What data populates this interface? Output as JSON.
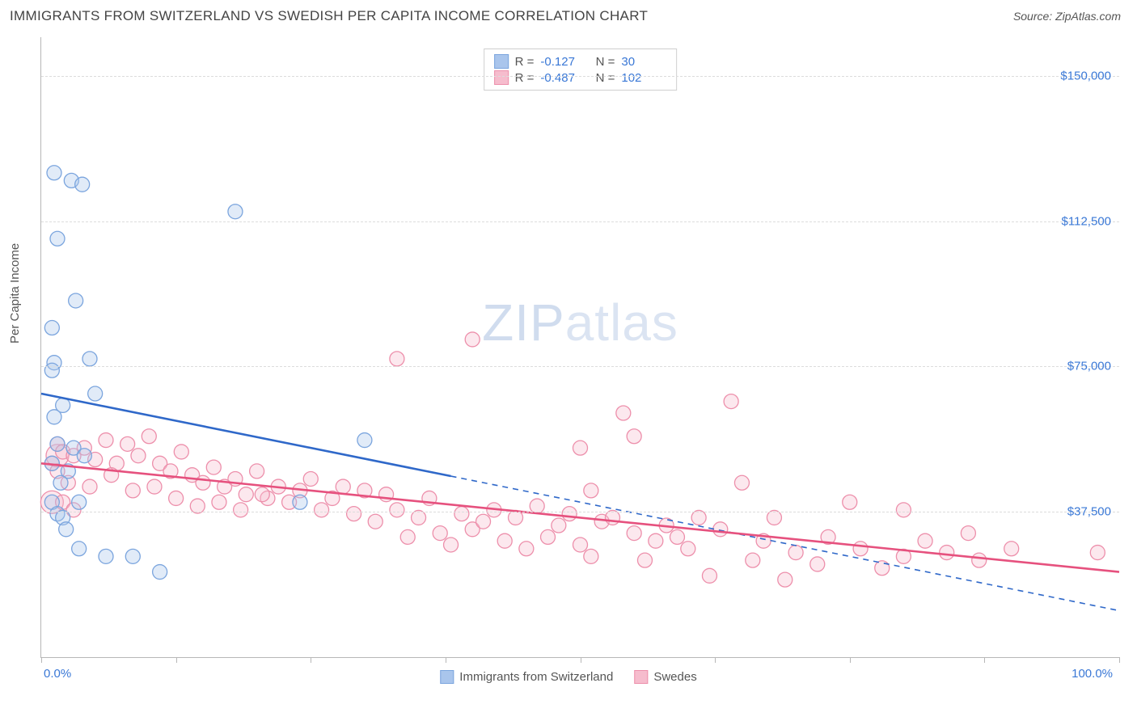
{
  "header": {
    "title": "IMMIGRANTS FROM SWITZERLAND VS SWEDISH PER CAPITA INCOME CORRELATION CHART",
    "source_label": "Source: ZipAtlas.com"
  },
  "chart": {
    "type": "scatter",
    "y_axis_label": "Per Capita Income",
    "xlim": [
      0,
      100
    ],
    "ylim": [
      0,
      160000
    ],
    "y_ticks": [
      37500,
      75000,
      112500,
      150000
    ],
    "y_tick_labels": [
      "$37,500",
      "$75,000",
      "$112,500",
      "$150,000"
    ],
    "x_tick_positions": [
      0,
      12.5,
      25,
      37.5,
      50,
      62.5,
      75,
      87.5,
      100
    ],
    "x_end_labels": [
      "0.0%",
      "100.0%"
    ],
    "background_color": "#ffffff",
    "grid_color": "#dcdcdc",
    "axis_color": "#b7b7b7",
    "tick_label_color": "#3a78d6",
    "text_color": "#555555",
    "marker_radius": 9,
    "marker_radius_large": 14,
    "watermark": "ZIPatlas",
    "series": [
      {
        "key": "swiss",
        "label": "Immigrants from Switzerland",
        "fill": "#a9c5ec",
        "stroke": "#7ba5de",
        "line_color": "#2f68c9",
        "R": "-0.127",
        "N": "30",
        "trend": {
          "y_at_x0": 68000,
          "y_at_x100": 12000,
          "solid_until_x": 38
        },
        "points": [
          [
            1.2,
            125000
          ],
          [
            2.8,
            123000
          ],
          [
            3.8,
            122000
          ],
          [
            1.5,
            108000
          ],
          [
            18,
            115000
          ],
          [
            1.0,
            85000
          ],
          [
            3.2,
            92000
          ],
          [
            1.2,
            76000
          ],
          [
            1.0,
            74000
          ],
          [
            4.5,
            77000
          ],
          [
            1.2,
            62000
          ],
          [
            2.0,
            65000
          ],
          [
            1.5,
            55000
          ],
          [
            3.0,
            54000
          ],
          [
            4.0,
            52000
          ],
          [
            1.0,
            50000
          ],
          [
            2.5,
            48000
          ],
          [
            1.8,
            45000
          ],
          [
            3.5,
            40000
          ],
          [
            1.0,
            40000
          ],
          [
            24,
            40000
          ],
          [
            30,
            56000
          ],
          [
            3.5,
            28000
          ],
          [
            6.0,
            26000
          ],
          [
            8.5,
            26000
          ],
          [
            11,
            22000
          ],
          [
            1.5,
            37000
          ],
          [
            2.0,
            36000
          ],
          [
            5.0,
            68000
          ],
          [
            2.3,
            33000
          ]
        ]
      },
      {
        "key": "swedes",
        "label": "Swedes",
        "fill": "#f6bccd",
        "stroke": "#ed8fab",
        "line_color": "#e6517e",
        "R": "-0.487",
        "N": "102",
        "trend": {
          "y_at_x0": 50000,
          "y_at_x100": 22000,
          "solid_until_x": 100
        },
        "points": [
          [
            1.5,
            55000
          ],
          [
            2.0,
            53000
          ],
          [
            3.0,
            52000
          ],
          [
            4.0,
            54000
          ],
          [
            5.0,
            51000
          ],
          [
            6.0,
            56000
          ],
          [
            7.0,
            50000
          ],
          [
            8.0,
            55000
          ],
          [
            9.0,
            52000
          ],
          [
            10,
            57000
          ],
          [
            11,
            50000
          ],
          [
            12,
            48000
          ],
          [
            13,
            53000
          ],
          [
            14,
            47000
          ],
          [
            15,
            45000
          ],
          [
            16,
            49000
          ],
          [
            17,
            44000
          ],
          [
            18,
            46000
          ],
          [
            19,
            42000
          ],
          [
            20,
            48000
          ],
          [
            21,
            41000
          ],
          [
            22,
            44000
          ],
          [
            23,
            40000
          ],
          [
            24,
            43000
          ],
          [
            25,
            46000
          ],
          [
            26,
            38000
          ],
          [
            27,
            41000
          ],
          [
            28,
            44000
          ],
          [
            29,
            37000
          ],
          [
            30,
            43000
          ],
          [
            31,
            35000
          ],
          [
            32,
            42000
          ],
          [
            33,
            38000
          ],
          [
            34,
            31000
          ],
          [
            35,
            36000
          ],
          [
            36,
            41000
          ],
          [
            37,
            32000
          ],
          [
            38,
            29000
          ],
          [
            39,
            37000
          ],
          [
            40,
            33000
          ],
          [
            40,
            82000
          ],
          [
            41,
            35000
          ],
          [
            42,
            38000
          ],
          [
            43,
            30000
          ],
          [
            44,
            36000
          ],
          [
            45,
            28000
          ],
          [
            46,
            39000
          ],
          [
            47,
            31000
          ],
          [
            48,
            34000
          ],
          [
            49,
            37000
          ],
          [
            50,
            29000
          ],
          [
            50,
            54000
          ],
          [
            51,
            43000
          ],
          [
            51,
            26000
          ],
          [
            52,
            35000
          ],
          [
            53,
            36000
          ],
          [
            54,
            63000
          ],
          [
            55,
            57000
          ],
          [
            55,
            32000
          ],
          [
            56,
            25000
          ],
          [
            57,
            30000
          ],
          [
            58,
            34000
          ],
          [
            59,
            31000
          ],
          [
            60,
            28000
          ],
          [
            61,
            36000
          ],
          [
            62,
            21000
          ],
          [
            64,
            66000
          ],
          [
            63,
            33000
          ],
          [
            65,
            45000
          ],
          [
            66,
            25000
          ],
          [
            67,
            30000
          ],
          [
            68,
            36000
          ],
          [
            69,
            20000
          ],
          [
            70,
            27000
          ],
          [
            72,
            24000
          ],
          [
            73,
            31000
          ],
          [
            75,
            40000
          ],
          [
            76,
            28000
          ],
          [
            78,
            23000
          ],
          [
            80,
            38000
          ],
          [
            80,
            26000
          ],
          [
            82,
            30000
          ],
          [
            84,
            27000
          ],
          [
            86,
            32000
          ],
          [
            87,
            25000
          ],
          [
            90,
            28000
          ],
          [
            98,
            27000
          ],
          [
            33,
            77000
          ],
          [
            2.0,
            40000
          ],
          [
            3.0,
            38000
          ],
          [
            1.0,
            50000
          ],
          [
            1.5,
            48000
          ],
          [
            2.5,
            45000
          ],
          [
            4.5,
            44000
          ],
          [
            6.5,
            47000
          ],
          [
            8.5,
            43000
          ],
          [
            10.5,
            44000
          ],
          [
            12.5,
            41000
          ],
          [
            14.5,
            39000
          ],
          [
            16.5,
            40000
          ],
          [
            18.5,
            38000
          ],
          [
            20.5,
            42000
          ]
        ],
        "large_points": [
          [
            1.5,
            52000
          ],
          [
            1.0,
            40000
          ]
        ]
      }
    ]
  },
  "legend_bottom": {
    "items": [
      "Immigrants from Switzerland",
      "Swedes"
    ]
  }
}
